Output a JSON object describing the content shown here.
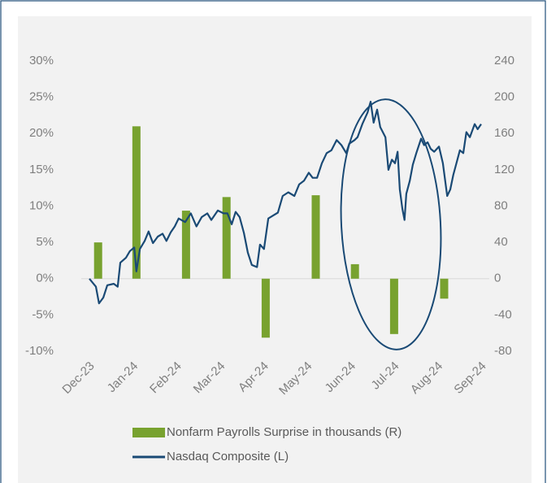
{
  "chart_data": {
    "type": "combo",
    "xlim": [
      0,
      9
    ],
    "xticks": [
      {
        "value": 0,
        "label": "Dec-23"
      },
      {
        "value": 1,
        "label": "Jan-24"
      },
      {
        "value": 2,
        "label": "Feb-24"
      },
      {
        "value": 3,
        "label": "Mar-24"
      },
      {
        "value": 4,
        "label": "Apr-24"
      },
      {
        "value": 5,
        "label": "May-24"
      },
      {
        "value": 6,
        "label": "Jun-24"
      },
      {
        "value": 7,
        "label": "Jul-24"
      },
      {
        "value": 8,
        "label": "Aug-24"
      },
      {
        "value": 9,
        "label": "Sep-24"
      }
    ],
    "ylim": [
      -10,
      30
    ],
    "yticks": [
      {
        "value": -10,
        "label": "-10%"
      },
      {
        "value": -5,
        "label": "-5%"
      },
      {
        "value": 0,
        "label": "0%"
      },
      {
        "value": 5,
        "label": "5%"
      },
      {
        "value": 10,
        "label": "10%"
      },
      {
        "value": 15,
        "label": "15%"
      },
      {
        "value": 20,
        "label": "20%"
      },
      {
        "value": 25,
        "label": "25%"
      },
      {
        "value": 30,
        "label": "30%"
      }
    ],
    "y2lim": [
      -80,
      240
    ],
    "y2ticks": [
      -80,
      -40,
      0,
      40,
      80,
      120,
      160,
      200,
      240
    ],
    "legend": "bottom",
    "series": [
      {
        "name": "Nonfarm Payrolls Surprise in thousands (R)",
        "type": "bar",
        "axis": "y2",
        "color": "#78a22f",
        "x": [
          0.2,
          1.08,
          2.22,
          3.15,
          4.05,
          5.2,
          6.1,
          7.0,
          8.15
        ],
        "values": [
          40,
          168,
          75,
          90,
          -65,
          92,
          16,
          -61,
          -22
        ]
      },
      {
        "name": "Nasdaq Composite (L)",
        "type": "line",
        "color": "#1a4a75",
        "x": [
          0,
          0.15,
          0.22,
          0.32,
          0.41,
          0.56,
          0.65,
          0.71,
          0.84,
          0.93,
          1.03,
          1.08,
          1.16,
          1.27,
          1.36,
          1.46,
          1.57,
          1.68,
          1.77,
          1.87,
          1.96,
          2.05,
          2.2,
          2.33,
          2.46,
          2.58,
          2.71,
          2.8,
          2.95,
          3.08,
          3.17,
          3.27,
          3.36,
          3.45,
          3.55,
          3.64,
          3.73,
          3.85,
          3.92,
          4.01,
          4.11,
          4.22,
          4.33,
          4.44,
          4.57,
          4.71,
          4.82,
          4.93,
          5.04,
          5.13,
          5.23,
          5.34,
          5.45,
          5.56,
          5.68,
          5.79,
          5.9,
          5.97,
          6.09,
          6.16,
          6.27,
          6.39,
          6.46,
          6.53,
          6.61,
          6.68,
          6.8,
          6.87,
          6.95,
          7.02,
          7.08,
          7.13,
          7.19,
          7.24,
          7.28,
          7.36,
          7.43,
          7.51,
          7.62,
          7.69,
          7.77,
          7.84,
          7.92,
          8.03,
          8.12,
          8.22,
          8.29,
          8.36,
          8.44,
          8.51,
          8.59,
          8.66,
          8.74,
          8.85,
          8.92,
          9.0
        ],
        "values": [
          0,
          -1.1,
          -3.4,
          -2.6,
          -0.9,
          -0.7,
          -1.1,
          2.2,
          2.9,
          3.8,
          4.3,
          1.0,
          4.1,
          5.2,
          6.5,
          4.9,
          5.8,
          6.2,
          5.2,
          6.4,
          7.2,
          8.3,
          7.8,
          9.0,
          7.2,
          8.5,
          9.0,
          8.1,
          9.4,
          9.0,
          9.0,
          7.5,
          9.2,
          8.5,
          6.3,
          3.6,
          1.9,
          1.6,
          4.7,
          4.1,
          8.3,
          8.7,
          9.1,
          11.4,
          11.9,
          11.4,
          13.0,
          13.5,
          14.6,
          13.9,
          13.9,
          15.9,
          17.3,
          17.7,
          19.1,
          18.4,
          17.3,
          18.6,
          19.1,
          19.5,
          21.3,
          22.9,
          24.4,
          21.5,
          23.3,
          20.9,
          19.5,
          15.0,
          16.4,
          15.9,
          17.5,
          12.3,
          9.6,
          8.1,
          11.7,
          13.5,
          15.7,
          17.3,
          19.3,
          18.4,
          18.8,
          17.9,
          17.5,
          18.2,
          15.9,
          11.4,
          12.3,
          14.3,
          16.1,
          17.7,
          17.3,
          20.2,
          19.5,
          21.3,
          20.6,
          21.3
        ]
      }
    ]
  }
}
